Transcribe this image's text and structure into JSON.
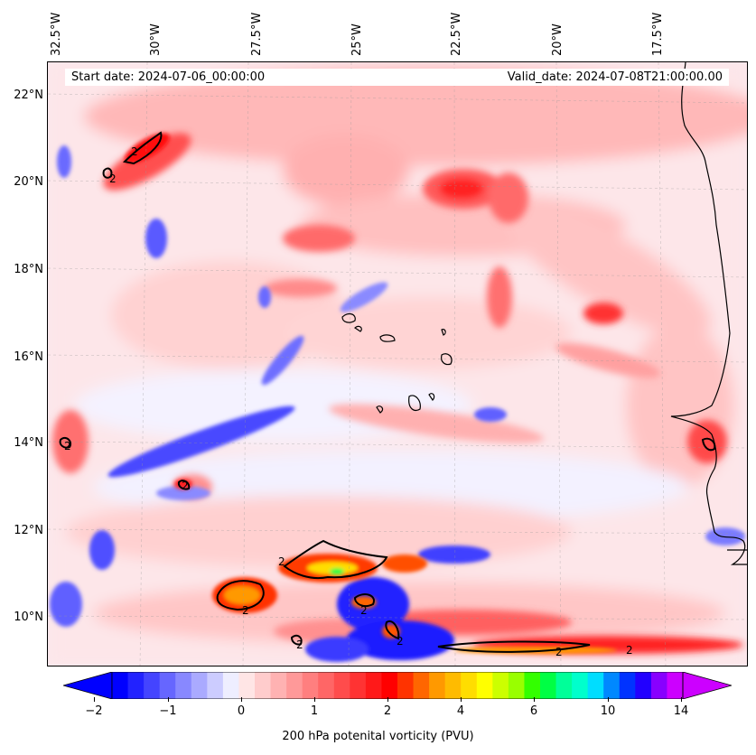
{
  "header": {
    "start_date": "Start date: 2024-07-06_00:00:00",
    "valid_date": "Valid_date: 2024-07-08T21:00:00.00"
  },
  "longitude_labels": [
    "32.5°W",
    "30°W",
    "27.5°W",
    "25°W",
    "22.5°W",
    "20°W",
    "17.5°W"
  ],
  "latitude_labels": [
    "22°N",
    "20°N",
    "18°N",
    "16°N",
    "14°N",
    "12°N",
    "10°N"
  ],
  "contour_labels": [
    "2",
    "2",
    "2",
    "2",
    "2",
    "2",
    "2",
    "2",
    "2",
    "2",
    "2"
  ],
  "colorbar": {
    "title": "200 hPa potenital vorticity (PVU)",
    "tick_labels": [
      "−2",
      "−1",
      "0",
      "1",
      "2",
      "4",
      "6",
      "10",
      "14"
    ],
    "colors": [
      "#0000ff",
      "#2222ff",
      "#4444ff",
      "#6666ff",
      "#8888ff",
      "#aaaaff",
      "#ccccff",
      "#eeeeff",
      "#ffe5e5",
      "#ffcccc",
      "#ffb2b2",
      "#ff9999",
      "#ff7f7f",
      "#ff6666",
      "#ff4c4c",
      "#ff3333",
      "#ff1919",
      "#ff0000",
      "#ff3300",
      "#ff6600",
      "#ff9900",
      "#ffbb00",
      "#ffdd00",
      "#ffff00",
      "#ccff00",
      "#99ff00",
      "#33ff00",
      "#00ff44",
      "#00ff99",
      "#00ffcc",
      "#00ddff",
      "#0088ff",
      "#0033ff",
      "#2200ff",
      "#8800ff",
      "#cc00ff"
    ]
  }
}
